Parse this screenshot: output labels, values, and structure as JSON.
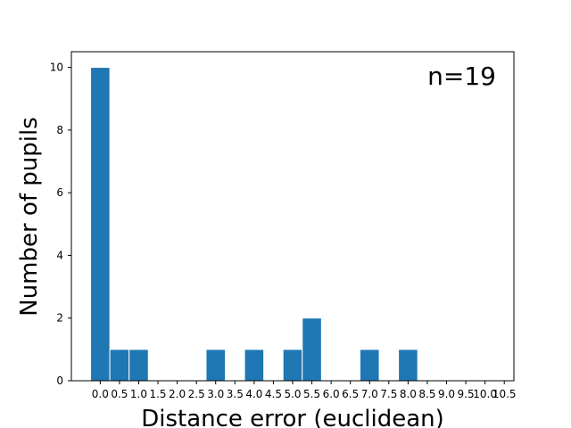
{
  "chart_data": {
    "type": "bar",
    "title": "",
    "xlabel": "Distance error (euclidean)",
    "ylabel": "Number of pupils",
    "annotation": "n=19",
    "bar_color": "#1f77b4",
    "bar_edge_color": "#ffffff",
    "bin_width": 0.5,
    "categories": [
      "0.0",
      "0.5",
      "1.0",
      "1.5",
      "2.0",
      "2.5",
      "3.0",
      "3.5",
      "4.0",
      "4.5",
      "5.0",
      "5.5",
      "6.0",
      "6.5",
      "7.0",
      "7.5",
      "8.0",
      "8.5",
      "9.0",
      "9.5",
      "10.0",
      "10.5"
    ],
    "values": [
      10,
      1,
      1,
      0,
      0,
      0,
      1,
      0,
      1,
      0,
      1,
      2,
      0,
      0,
      1,
      0,
      1,
      0,
      0,
      0,
      0,
      0
    ],
    "yticks": [
      0,
      2,
      4,
      6,
      8,
      10
    ],
    "xlim": [
      -0.75,
      10.75
    ],
    "ylim": [
      0,
      10.5
    ]
  }
}
